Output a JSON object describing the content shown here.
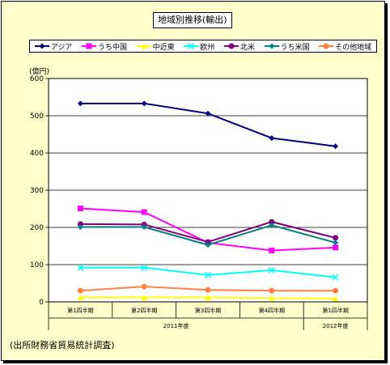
{
  "title": "地域別推移(輸出)",
  "source_note": "(出所財務省貿易統計調査)",
  "chart_data": {
    "type": "line",
    "ylabel": "(億円)",
    "ylim": [
      0,
      600
    ],
    "yticks": [
      0,
      100,
      200,
      300,
      400,
      500,
      600
    ],
    "grid": true,
    "legend_position": "top",
    "categories": [
      "第1四半期",
      "第2四半期",
      "第3四半期",
      "第4四半期",
      "第1四半期"
    ],
    "year_groups": [
      {
        "label": "2011年度",
        "span": 4
      },
      {
        "label": "2012年度",
        "span": 1
      }
    ],
    "series": [
      {
        "name": "アジア",
        "color": "#000080",
        "marker": "diamond",
        "values": [
          533,
          533,
          506,
          440,
          418
        ]
      },
      {
        "name": "うち中国",
        "color": "#ff00ff",
        "marker": "square",
        "values": [
          251,
          241,
          159,
          138,
          146
        ]
      },
      {
        "name": "中近東",
        "color": "#ffff00",
        "marker": "triangle",
        "values": [
          12,
          12,
          12,
          10,
          9
        ]
      },
      {
        "name": "欧州",
        "color": "#00ffff",
        "marker": "x",
        "values": [
          92,
          92,
          72,
          85,
          66
        ]
      },
      {
        "name": "北米",
        "color": "#800080",
        "marker": "circle",
        "values": [
          209,
          208,
          161,
          215,
          172
        ]
      },
      {
        "name": "うち米国",
        "color": "#008080",
        "marker": "diamond",
        "values": [
          201,
          201,
          153,
          206,
          159
        ]
      },
      {
        "name": "その他地域",
        "color": "#ff8040",
        "marker": "circle",
        "values": [
          30,
          41,
          32,
          30,
          30
        ]
      }
    ]
  }
}
